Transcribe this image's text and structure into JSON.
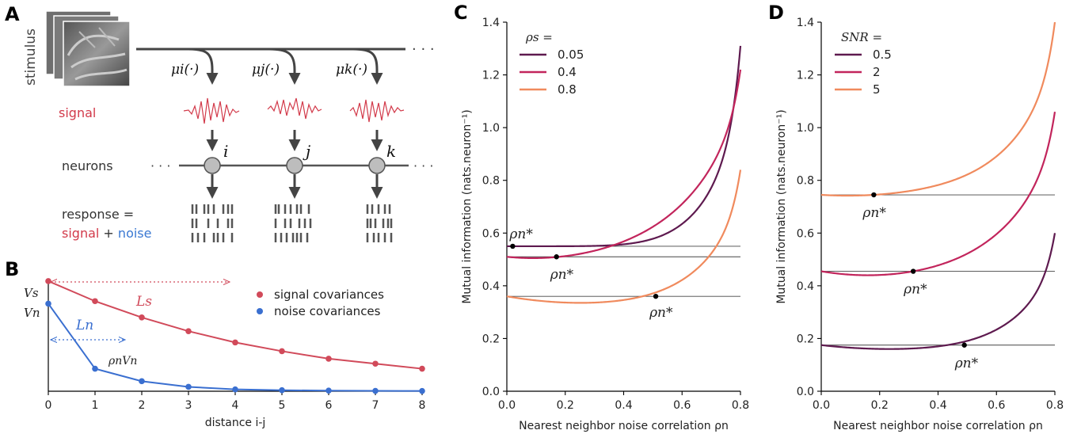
{
  "panels": {
    "a": {
      "label": "A"
    },
    "b": {
      "label": "B"
    },
    "c": {
      "label": "C"
    },
    "d": {
      "label": "D"
    }
  },
  "panel_a": {
    "stimulus_label": "stimulus",
    "ellipsis": "· · ·",
    "mu_labels": [
      "μi(·)",
      "μj(·)",
      "μk(·)"
    ],
    "signal_label": "signal",
    "neurons_label": "neurons",
    "neuron_names": [
      "i",
      "j",
      "k"
    ],
    "response_line1": "response =",
    "response_signal": "signal",
    "response_plus": "+",
    "response_noise": "noise",
    "colors": {
      "signal": "#d23a4a",
      "noise": "#3a78d2",
      "arrow": "#444444",
      "neuron_fill": "#bdbdbd"
    }
  },
  "chart_data": [
    {
      "panel": "B",
      "type": "line",
      "xlabel": "distance i-j",
      "ylabel": "",
      "xlim": [
        0,
        8
      ],
      "x_ticks": [
        "0",
        "1",
        "2",
        "3",
        "4",
        "5",
        "6",
        "7",
        "8"
      ],
      "series": [
        {
          "name": "signal covariances",
          "color": "#d14a5a",
          "x": [
            0,
            1,
            2,
            3,
            4,
            5,
            6,
            7,
            8
          ],
          "y": [
            0.88,
            0.72,
            0.59,
            0.48,
            0.39,
            0.32,
            0.26,
            0.22,
            0.18
          ]
        },
        {
          "name": "noise covariances",
          "color": "#3a6fd0",
          "x": [
            0,
            1,
            2,
            3,
            4,
            5,
            6,
            7,
            8
          ],
          "y": [
            0.7,
            0.18,
            0.08,
            0.035,
            0.015,
            0.008,
            0.005,
            0.003,
            0.002
          ]
        }
      ],
      "annotations": {
        "vs": "Vs",
        "vn": "Vn",
        "ls": "Ls",
        "ln": "Ln",
        "rho_vn": "ρnVn"
      }
    },
    {
      "panel": "C",
      "type": "line",
      "xlabel": "Nearest neighbor noise correlation ρn",
      "ylabel": "Mutual information (nats.neuron⁻¹)",
      "xlim": [
        0,
        0.8
      ],
      "ylim": [
        0,
        1.4
      ],
      "x_ticks": [
        "0.0",
        "0.2",
        "0.4",
        "0.6",
        "0.8"
      ],
      "y_ticks": [
        "0.0",
        "0.2",
        "0.4",
        "0.6",
        "0.8",
        "1.0",
        "1.2",
        "1.4"
      ],
      "legend_title": "ρs  =",
      "series": [
        {
          "name": "0.05",
          "color": "#5e1a4f",
          "base": 0.55,
          "min_val": 0.55,
          "min_x": 0.0,
          "end_val": 1.31,
          "star_x": 0.02
        },
        {
          "name": "0.4",
          "color": "#c2255c",
          "base": 0.51,
          "min_val": 0.505,
          "min_x": 0.09,
          "end_val": 1.22,
          "star_x": 0.17
        },
        {
          "name": "0.8",
          "color": "#f08a5d",
          "base": 0.36,
          "min_val": 0.335,
          "min_x": 0.26,
          "end_val": 0.84,
          "star_x": 0.51
        }
      ],
      "star_label": "ρn*"
    },
    {
      "panel": "D",
      "type": "line",
      "xlabel": "Nearest neighbor noise correlation ρn",
      "ylabel": "Mutual information (nats.neuron⁻¹)",
      "xlim": [
        0,
        0.8
      ],
      "ylim": [
        0,
        1.4
      ],
      "x_ticks": [
        "0.0",
        "0.2",
        "0.4",
        "0.6",
        "0.8"
      ],
      "y_ticks": [
        "0.0",
        "0.2",
        "0.4",
        "0.6",
        "0.8",
        "1.0",
        "1.2",
        "1.4"
      ],
      "legend_title": "SNR =",
      "series": [
        {
          "name": "0.5",
          "color": "#5e1a4f",
          "base": 0.175,
          "min_val": 0.16,
          "min_x": 0.24,
          "end_val": 0.6,
          "star_x": 0.49
        },
        {
          "name": "2",
          "color": "#c2255c",
          "base": 0.455,
          "min_val": 0.44,
          "min_x": 0.16,
          "end_val": 1.06,
          "star_x": 0.315
        },
        {
          "name": "5",
          "color": "#f08a5d",
          "base": 0.745,
          "min_val": 0.742,
          "min_x": 0.09,
          "end_val": 1.4,
          "star_x": 0.18
        }
      ],
      "star_label": "ρn*"
    }
  ]
}
